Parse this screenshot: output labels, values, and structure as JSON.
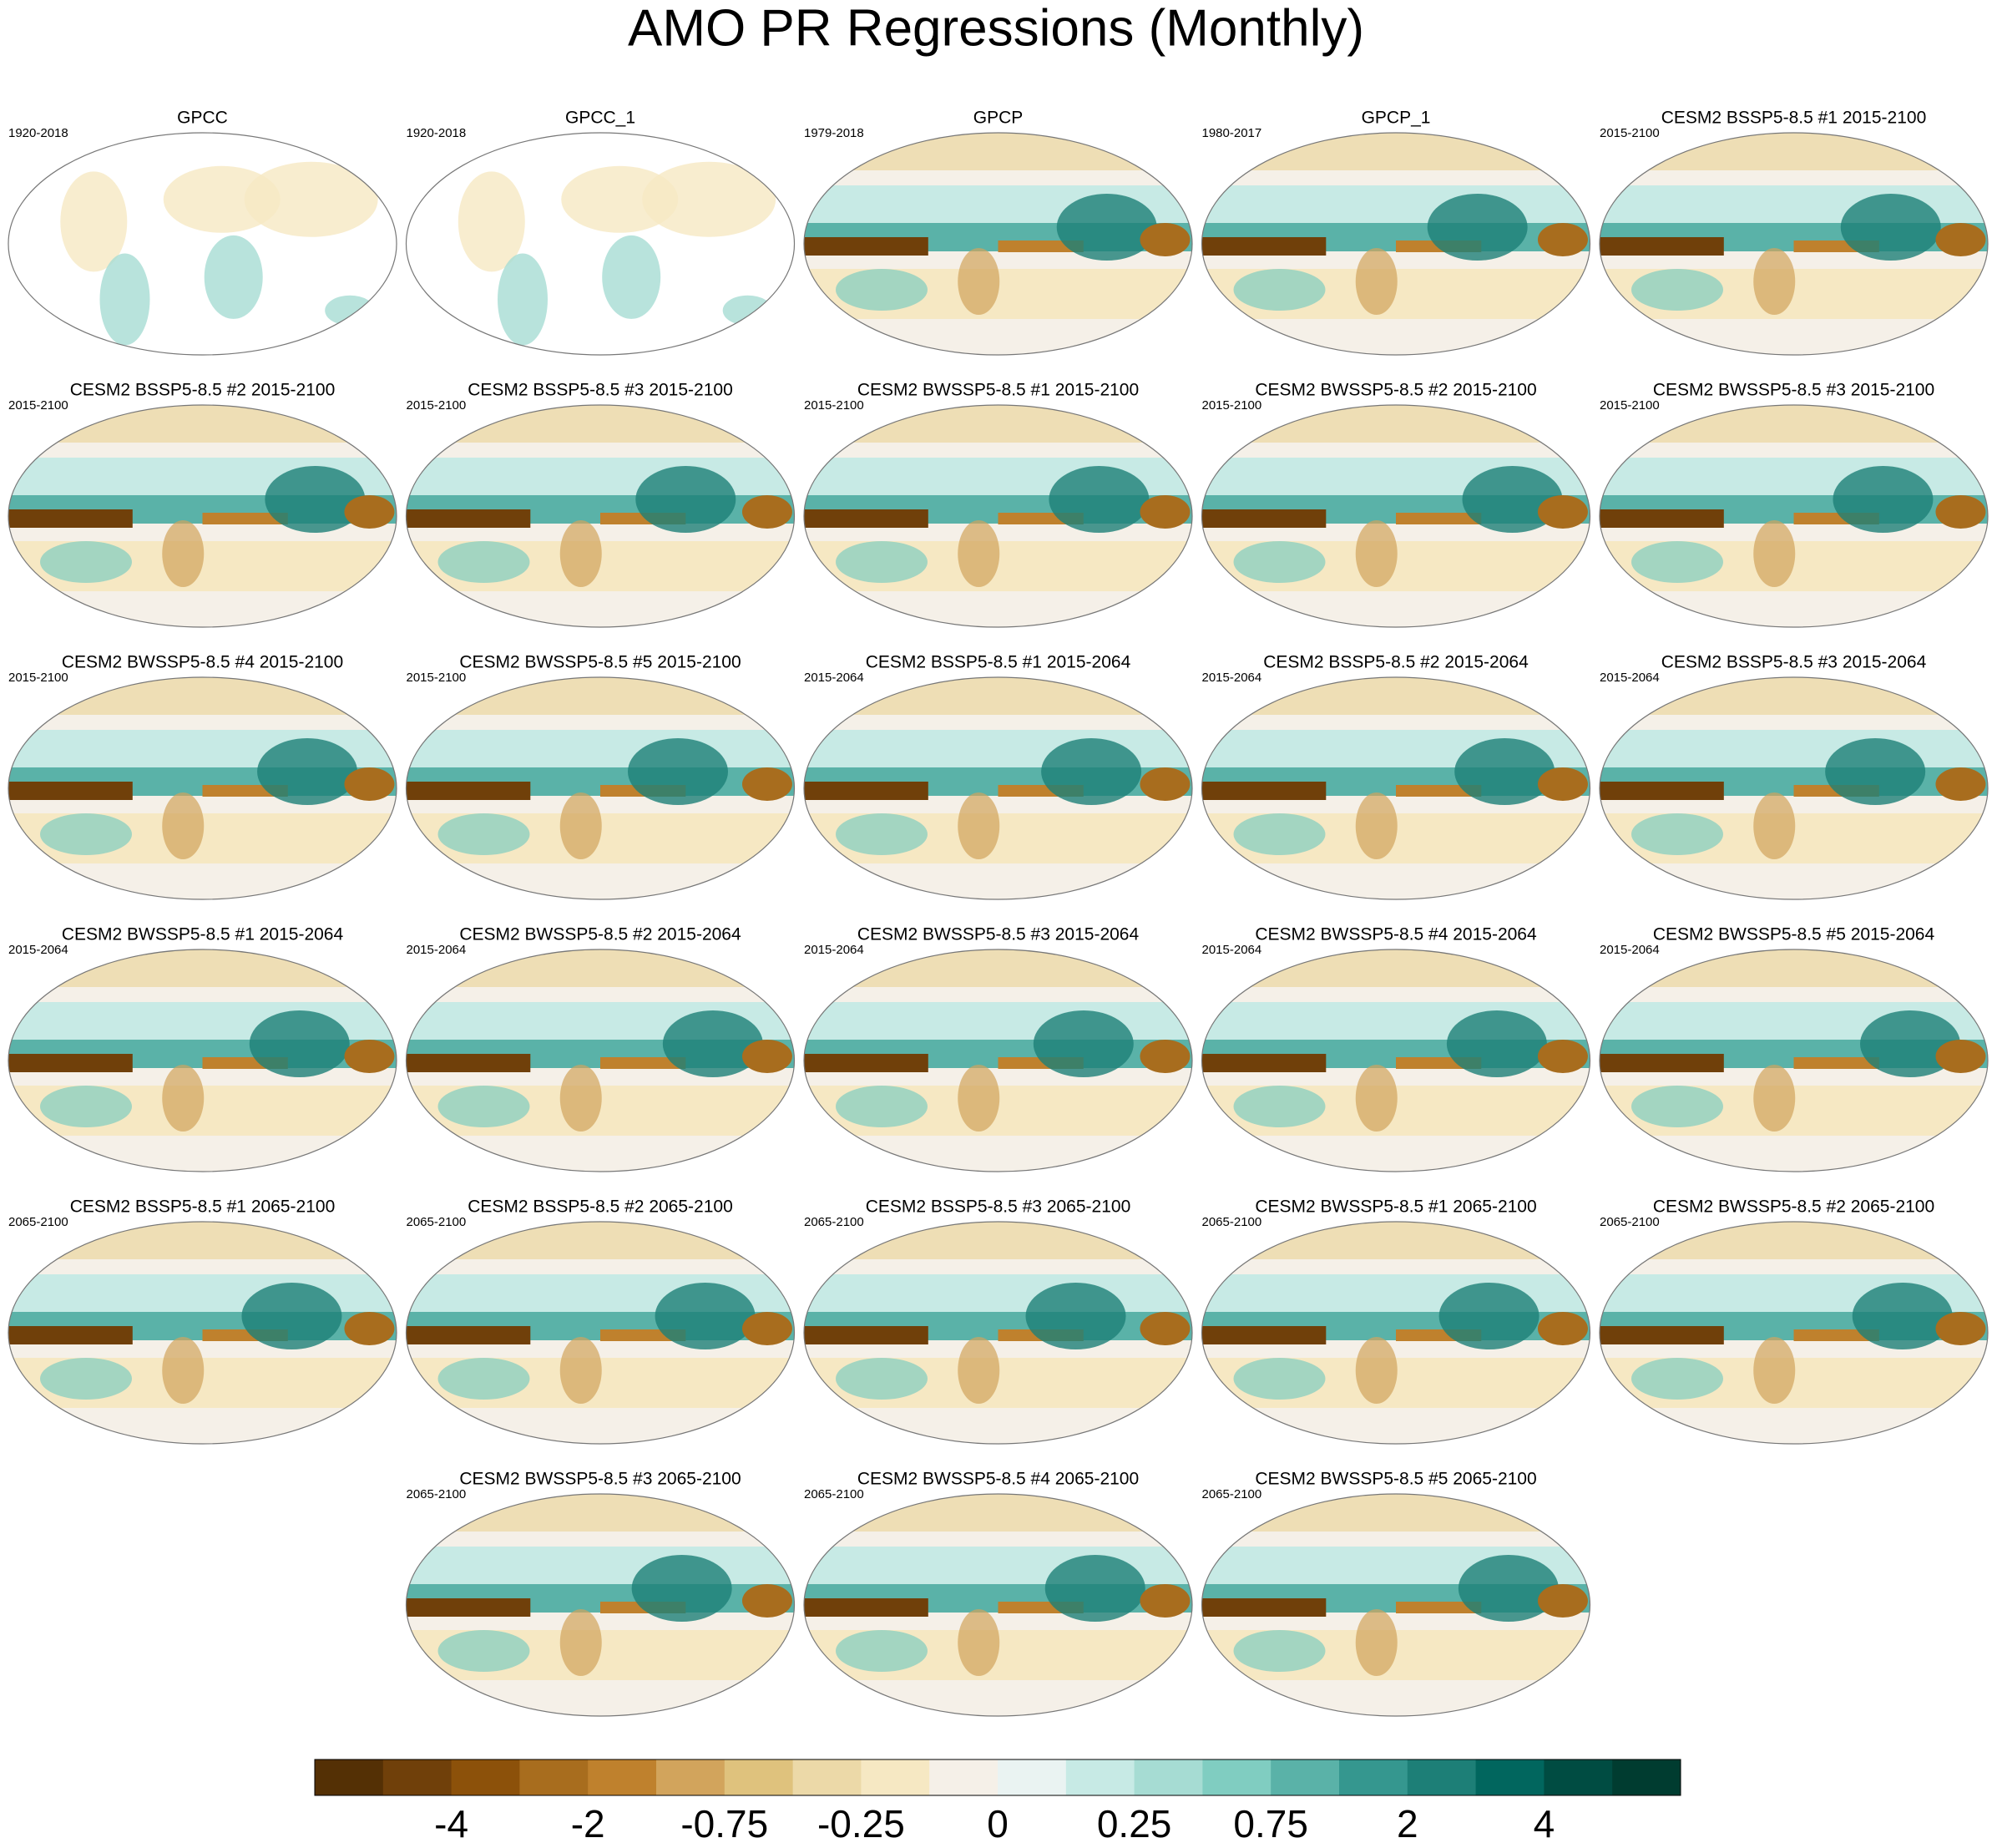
{
  "title": "AMO PR Regressions (Monthly)",
  "panels": [
    {
      "title": "GPCC",
      "period": "1920-2018"
    },
    {
      "title": "GPCC_1",
      "period": "1920-2018"
    },
    {
      "title": "GPCP",
      "period": "1979-2018"
    },
    {
      "title": "GPCP_1",
      "period": "1980-2017"
    },
    {
      "title": "CESM2 BSSP5-8.5 #1 2015-2100",
      "period": "2015-2100"
    },
    {
      "title": "CESM2 BSSP5-8.5 #2 2015-2100",
      "period": "2015-2100"
    },
    {
      "title": "CESM2 BSSP5-8.5 #3 2015-2100",
      "period": "2015-2100"
    },
    {
      "title": "CESM2 BWSSP5-8.5 #1 2015-2100",
      "period": "2015-2100"
    },
    {
      "title": "CESM2 BWSSP5-8.5 #2 2015-2100",
      "period": "2015-2100"
    },
    {
      "title": "CESM2 BWSSP5-8.5 #3 2015-2100",
      "period": "2015-2100"
    },
    {
      "title": "CESM2 BWSSP5-8.5 #4 2015-2100",
      "period": "2015-2100"
    },
    {
      "title": "CESM2 BWSSP5-8.5 #5 2015-2100",
      "period": "2015-2100"
    },
    {
      "title": "CESM2 BSSP5-8.5 #1 2015-2064",
      "period": "2015-2064"
    },
    {
      "title": "CESM2 BSSP5-8.5 #2 2015-2064",
      "period": "2015-2064"
    },
    {
      "title": "CESM2 BSSP5-8.5 #3 2015-2064",
      "period": "2015-2064"
    },
    {
      "title": "CESM2 BWSSP5-8.5 #1 2015-2064",
      "period": "2015-2064"
    },
    {
      "title": "CESM2 BWSSP5-8.5 #2 2015-2064",
      "period": "2015-2064"
    },
    {
      "title": "CESM2 BWSSP5-8.5 #3 2015-2064",
      "period": "2015-2064"
    },
    {
      "title": "CESM2 BWSSP5-8.5 #4 2015-2064",
      "period": "2015-2064"
    },
    {
      "title": "CESM2 BWSSP5-8.5 #5 2015-2064",
      "period": "2015-2064"
    },
    {
      "title": "CESM2 BSSP5-8.5 #1 2065-2100",
      "period": "2065-2100"
    },
    {
      "title": "CESM2 BSSP5-8.5 #2 2065-2100",
      "period": "2065-2100"
    },
    {
      "title": "CESM2 BSSP5-8.5 #3 2065-2100",
      "period": "2065-2100"
    },
    {
      "title": "CESM2 BWSSP5-8.5 #1 2065-2100",
      "period": "2065-2100"
    },
    {
      "title": "CESM2 BWSSP5-8.5 #2 2065-2100",
      "period": "2065-2100"
    },
    {
      "title": "CESM2 BWSSP5-8.5 #3 2065-2100",
      "period": "2065-2100"
    },
    {
      "title": "CESM2 BWSSP5-8.5 #4 2065-2100",
      "period": "2065-2100"
    },
    {
      "title": "CESM2 BWSSP5-8.5 #5 2065-2100",
      "period": "2065-2100"
    }
  ],
  "colorbar": {
    "colors": [
      "#543005",
      "#70400a",
      "#8c510a",
      "#a86d1e",
      "#bf812d",
      "#d2a45c",
      "#dfc27d",
      "#ecd9a8",
      "#f6e8c3",
      "#f5f0e8",
      "#eaf3f2",
      "#c7eae5",
      "#a6dcd3",
      "#80cdc1",
      "#5ab2a8",
      "#35978f",
      "#1d7f77",
      "#01665e",
      "#004c42",
      "#003c30"
    ],
    "ticks": [
      -4,
      -2,
      -0.75,
      -0.25,
      0,
      0.25,
      0.75,
      2,
      4
    ]
  }
}
